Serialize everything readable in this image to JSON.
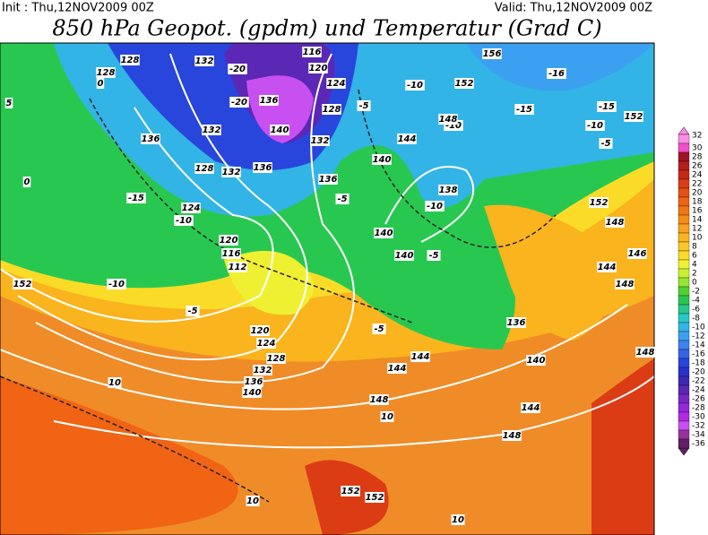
{
  "header": {
    "init": "Init : Thu,12NOV2009 00Z",
    "valid": "Valid: Thu,12NOV2009 00Z",
    "title": "850 hPa Geopot. (gpdm) und Temperatur (Grad C)"
  },
  "colorbar": {
    "levels": [
      32,
      30,
      28,
      26,
      24,
      22,
      20,
      18,
      16,
      14,
      12,
      10,
      8,
      6,
      4,
      2,
      0,
      -2,
      -4,
      -6,
      -8,
      -10,
      -12,
      -14,
      -16,
      -18,
      -20,
      -22,
      -24,
      -26,
      -28,
      -30,
      -32,
      -34,
      -36
    ],
    "colors": [
      "#fc8ce6",
      "#f050c8",
      "#a01428",
      "#b41e1e",
      "#c82814",
      "#dc3c14",
      "#e65014",
      "#f06414",
      "#f07814",
      "#f58c14",
      "#faa01e",
      "#fab41e",
      "#fac828",
      "#fadc28",
      "#f0f032",
      "#c8f032",
      "#96e632",
      "#50d232",
      "#28c850",
      "#28c88c",
      "#28c8c8",
      "#32b4e6",
      "#3ca0f0",
      "#3c82f0",
      "#3264e6",
      "#2846dc",
      "#2832c8",
      "#3c28b4",
      "#5a28b4",
      "#7828c8",
      "#9628dc",
      "#b428e6",
      "#c850f0",
      "#9632a0",
      "#641e64"
    ]
  },
  "map_labels": [
    "128",
    "128",
    "132",
    "-20",
    "116",
    "120",
    "124",
    "128",
    "-20",
    "136",
    "140",
    "132",
    "132",
    "136",
    "128",
    "132",
    "136",
    "-15",
    "-10",
    "124",
    "120",
    "116",
    "112",
    "-10",
    "152",
    "-5",
    "120",
    "124",
    "128",
    "132",
    "136",
    "140",
    "144",
    "148",
    "10",
    "10",
    "148",
    "152",
    "152",
    "10",
    "10",
    "-10",
    "-10",
    "152",
    "156",
    "-16",
    "-15",
    "-15",
    "152",
    "-10",
    "-5",
    "148",
    "144",
    "140",
    "138",
    "-10",
    "140",
    "140",
    "-5",
    "152",
    "148",
    "144",
    "148",
    "136",
    "140",
    "144",
    "144",
    "-5",
    "0",
    "5",
    "0",
    "-5",
    "136",
    "-5",
    "148",
    "146"
  ]
}
